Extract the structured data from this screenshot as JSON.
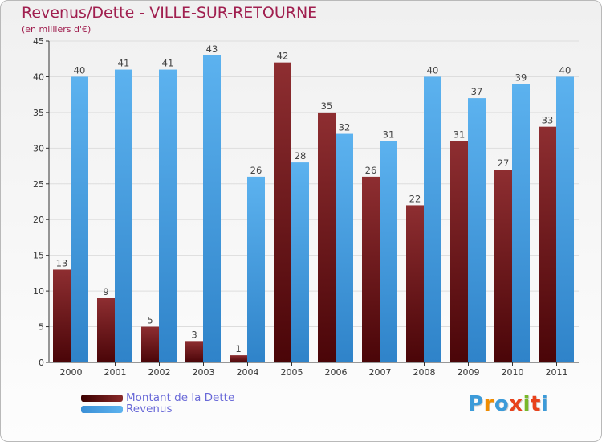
{
  "colors": {
    "title": "#a01f4f",
    "legend_text": "#6a6ad8",
    "dette": "#7a1f23",
    "revenus": "#4da3e8",
    "axis": "#333333",
    "grid": "#dddddd"
  },
  "brand": {
    "text": "Proxiti",
    "letters": [
      "P",
      "r",
      "o",
      "x",
      "i",
      "t",
      "i"
    ],
    "letter_colors": [
      "#3c9bd9",
      "#f08c00",
      "#3c9bd9",
      "#e8421c",
      "#78b82a",
      "#e8421c",
      "#3c9bd9"
    ]
  },
  "chart_data": {
    "type": "bar",
    "title": "Revenus/Dette - VILLE-SUR-RETOURNE",
    "subtitle": "(en milliers d'€)",
    "xlabel": "",
    "ylabel": "",
    "ylim": [
      0,
      45
    ],
    "yticks": [
      0,
      5,
      10,
      15,
      20,
      25,
      30,
      35,
      40,
      45
    ],
    "grid": true,
    "legend_position": "bottom-left",
    "categories": [
      "2000",
      "2001",
      "2002",
      "2003",
      "2004",
      "2005",
      "2006",
      "2007",
      "2008",
      "2009",
      "2010",
      "2011"
    ],
    "series": [
      {
        "name": "Montant de la Dette",
        "values": [
          13,
          9,
          5,
          3,
          1,
          42,
          35,
          26,
          22,
          31,
          27,
          33
        ]
      },
      {
        "name": "Revenus",
        "values": [
          40,
          41,
          41,
          43,
          26,
          28,
          32,
          31,
          40,
          37,
          39,
          40
        ]
      }
    ]
  }
}
